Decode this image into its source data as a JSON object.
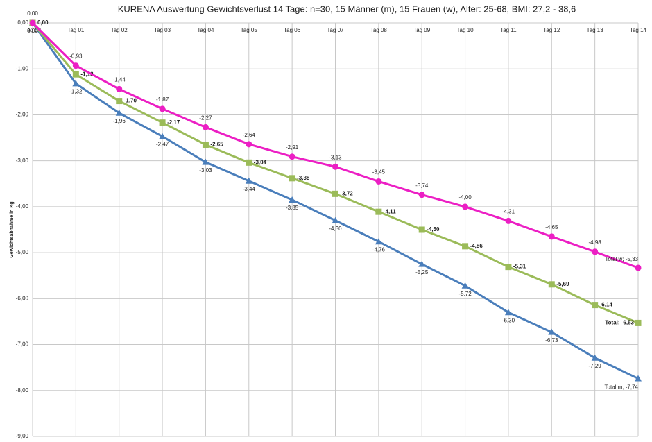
{
  "chart_data": {
    "type": "line",
    "title": "KURENA Auswertung Gewichtsverlust 14 Tage: n=30, 15 Männer (m), 15 Frauen (w), Alter: 25-68, BMI: 27,2 - 38,6",
    "y_label": "Gewichtsabnahme in Kg",
    "categories": [
      "Tag 00",
      "Tag 01",
      "Tag 02",
      "Tag 03",
      "Tag 04",
      "Tag 05",
      "Tag 06",
      "Tag 07",
      "Tag 08",
      "Tag 09",
      "Tag 10",
      "Tag 11",
      "Tag 12",
      "Tag 13",
      "Tag 14"
    ],
    "ylim": [
      -9,
      0
    ],
    "yticks": [
      {
        "value": 0,
        "label": "0,00"
      },
      {
        "value": -1,
        "label": "-1,00"
      },
      {
        "value": -2,
        "label": "-2,00"
      },
      {
        "value": -3,
        "label": "-3,00"
      },
      {
        "value": -4,
        "label": "-4,00"
      },
      {
        "value": -5,
        "label": "-5,00"
      },
      {
        "value": -6,
        "label": "-6,00"
      },
      {
        "value": -7,
        "label": "-7,00"
      },
      {
        "value": -8,
        "label": "-8,00"
      },
      {
        "value": -9,
        "label": "-9,00"
      }
    ],
    "grid": true,
    "series": [
      {
        "color": "#ec1fc4",
        "marker": "circle",
        "values": [
          0,
          -0.93,
          -1.44,
          -1.87,
          -2.27,
          -2.64,
          -2.91,
          -3.13,
          -3.45,
          -3.74,
          -4.0,
          -4.31,
          -4.65,
          -4.98,
          -5.33
        ],
        "value_labels": [
          "0,00",
          "-0,93",
          "-1,44",
          "-1,87",
          "-2,27",
          "-2,64",
          "-2,91",
          "-3,13",
          "-3,45",
          "-3,74",
          "-4,00",
          "-4,31",
          "-4,65",
          "-4,98",
          "Total w; -5,33"
        ]
      },
      {
        "color": "#9bbb59",
        "marker": "square",
        "values": [
          0,
          -1.12,
          -1.7,
          -2.17,
          -2.65,
          -3.04,
          -3.38,
          -3.72,
          -4.11,
          -4.5,
          -4.86,
          -5.31,
          -5.69,
          -6.14,
          -6.53
        ],
        "value_labels": [
          "0,00",
          "-1,12",
          "-1,70",
          "-2,17",
          "-2,65",
          "-3,04",
          "-3,38",
          "-3,72",
          "-4,11",
          "-4,50",
          "-4,86",
          "-5,31",
          "-5,69",
          "-6,14",
          "Total; -6,53"
        ]
      },
      {
        "color": "#4a7ebb",
        "marker": "triangle",
        "values": [
          0,
          -1.32,
          -1.96,
          -2.47,
          -3.03,
          -3.44,
          -3.85,
          -4.3,
          -4.76,
          -5.25,
          -5.72,
          -6.3,
          -6.73,
          -7.29,
          -7.74
        ],
        "value_labels": [
          "0,00",
          "-1,32",
          "-1,96",
          "-2,47",
          "-3,03",
          "-3,44",
          "-3,85",
          "-4,30",
          "-4,76",
          "-5,25",
          "-5,72",
          "-6,30",
          "-6,73",
          "-7,29",
          "Total m; -7,74"
        ]
      }
    ]
  }
}
